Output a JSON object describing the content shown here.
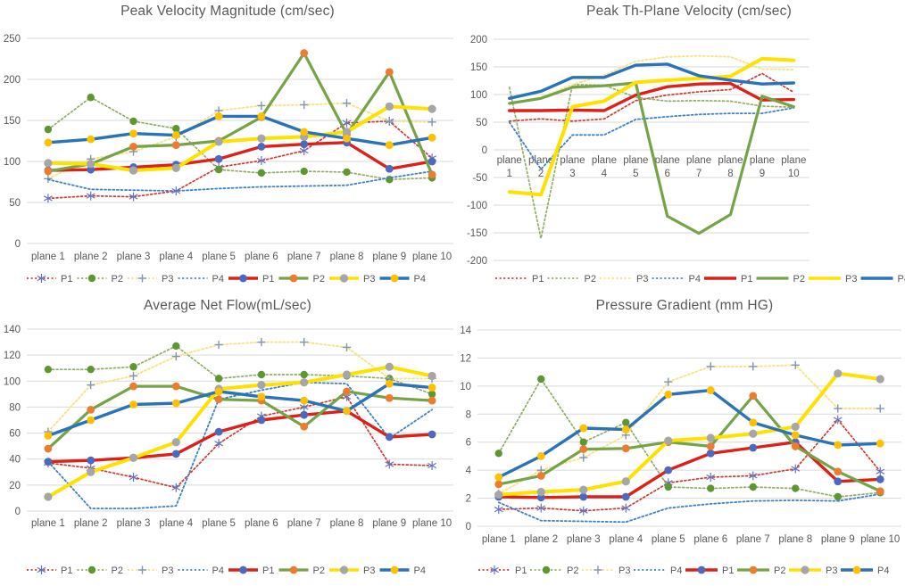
{
  "app": {
    "background": "#FFFFFF",
    "gridline_color": "#D9D9D9",
    "title_color": "#595959",
    "axis_text_color": "#595959"
  },
  "series_styles": [
    {
      "label": "P1",
      "variant": "dotted",
      "line_color": "#CE3A32",
      "line_width": 1.7,
      "dash": "2 2.6",
      "marker": "star",
      "marker_color": "#6674BE",
      "marker_r": 5
    },
    {
      "label": "P2",
      "variant": "dotted",
      "line_color": "#8FAE63",
      "line_width": 1.7,
      "dash": "2 2.6",
      "marker": "circle",
      "marker_color": "#5E9732",
      "marker_r": 4.2
    },
    {
      "label": "P3",
      "variant": "dotted",
      "line_color": "#F6E488",
      "line_width": 1.9,
      "dash": "2 2.6",
      "marker": "plus",
      "marker_color": "#8295B5",
      "marker_r": 5
    },
    {
      "label": "P4",
      "variant": "dotted",
      "line_color": "#3F81C3",
      "line_width": 1.8,
      "dash": "2 2.6",
      "marker": "none",
      "marker_color": "#3F81C3",
      "marker_r": 0
    },
    {
      "label": "P1",
      "variant": "solid",
      "line_color": "#DC2119",
      "line_width": 3.4,
      "dash": "",
      "marker": "circle",
      "marker_color": "#4D68BD",
      "marker_r": 4.4
    },
    {
      "label": "P2",
      "variant": "solid",
      "line_color": "#75A348",
      "line_width": 3.2,
      "dash": "",
      "marker": "circle",
      "marker_color": "#EC7C30",
      "marker_r": 4.4
    },
    {
      "label": "P3",
      "variant": "solid",
      "line_color": "#FFE100",
      "line_width": 4.0,
      "dash": "",
      "marker": "circle",
      "marker_color": "#A6A6A6",
      "marker_r": 4.6
    },
    {
      "label": "P4",
      "variant": "solid",
      "line_color": "#2A73B7",
      "line_width": 3.4,
      "dash": "",
      "marker": "circle",
      "marker_color": "#FFC000",
      "marker_r": 4.4
    }
  ],
  "chart_data": [
    {
      "type": "line",
      "id": "peak-velocity-magnitude",
      "title": "Peak Velocity Magnitude (cm/sec)",
      "categories": [
        "plane 1",
        "plane 2",
        "plane 3",
        "plane 4",
        "plane 5",
        "plane 6",
        "plane 7",
        "plane 8",
        "plane 9",
        "plane 10"
      ],
      "ylim": [
        0,
        250
      ],
      "ystep": 50,
      "grid": true,
      "show_markers": true,
      "legend_position": "bottom",
      "series": [
        {
          "name": "P1",
          "variant": "dotted",
          "values": [
            55,
            58,
            57,
            64,
            93,
            101,
            113,
            147,
            149,
            104
          ]
        },
        {
          "name": "P2",
          "variant": "dotted",
          "values": [
            139,
            178,
            149,
            140,
            90,
            86,
            88,
            87,
            78,
            80
          ]
        },
        {
          "name": "P3",
          "variant": "dotted",
          "values": [
            79,
            103,
            112,
            130,
            162,
            168,
            169,
            171,
            149,
            148
          ]
        },
        {
          "name": "P4",
          "variant": "dotted",
          "values": [
            78,
            66,
            65,
            64,
            67,
            69,
            70,
            71,
            80,
            88
          ]
        },
        {
          "name": "P1",
          "variant": "solid",
          "values": [
            89,
            90,
            93,
            96,
            103,
            118,
            121,
            123,
            91,
            100
          ]
        },
        {
          "name": "P2",
          "variant": "solid",
          "values": [
            88,
            97,
            118,
            120,
            125,
            154,
            232,
            133,
            209,
            84
          ]
        },
        {
          "name": "P3",
          "variant": "solid",
          "values": [
            98,
            97,
            89,
            92,
            124,
            128,
            130,
            136,
            167,
            164
          ]
        },
        {
          "name": "P4",
          "variant": "solid",
          "values": [
            123,
            127,
            134,
            132,
            155,
            155,
            136,
            128,
            120,
            129
          ]
        }
      ]
    },
    {
      "type": "line",
      "id": "peak-th-plane-velocity",
      "title": "Peak Th-Plane Velocity (cm/sec)",
      "categories": [
        "plane 1",
        "plane 2",
        "plane 3",
        "plane 4",
        "plane 5",
        "plane 6",
        "plane 7",
        "plane 8",
        "plane 9",
        "plane 10"
      ],
      "ylim": [
        -200,
        200
      ],
      "ystep": 50,
      "grid": true,
      "show_markers": false,
      "legend_position": "bottom",
      "series": [
        {
          "name": "P1",
          "variant": "dotted",
          "values": [
            52,
            56,
            52,
            56,
            89,
            99,
            105,
            109,
            138,
            104
          ]
        },
        {
          "name": "P2",
          "variant": "dotted",
          "values": [
            113,
            -160,
            118,
            117,
            95,
            88,
            89,
            88,
            79,
            77
          ]
        },
        {
          "name": "P3",
          "variant": "dotted",
          "values": [
            85,
            95,
            118,
            135,
            160,
            168,
            170,
            168,
            146,
            145
          ]
        },
        {
          "name": "P4",
          "variant": "dotted",
          "values": [
            50,
            -35,
            27,
            27,
            55,
            60,
            64,
            66,
            66,
            76
          ]
        },
        {
          "name": "P1",
          "variant": "solid",
          "values": [
            71,
            71,
            72,
            71,
            99,
            114,
            119,
            120,
            90,
            91
          ]
        },
        {
          "name": "P2",
          "variant": "solid",
          "values": [
            84,
            93,
            113,
            116,
            121,
            -120,
            -151,
            -117,
            97,
            78
          ]
        },
        {
          "name": "P3",
          "variant": "solid",
          "values": [
            -76,
            -81,
            78,
            88,
            122,
            126,
            129,
            133,
            165,
            162
          ]
        },
        {
          "name": "P4",
          "variant": "solid",
          "values": [
            93,
            106,
            131,
            131,
            153,
            155,
            134,
            126,
            119,
            121
          ]
        }
      ]
    },
    {
      "type": "line",
      "id": "average-net-flow",
      "title": "Average Net Flow(mL/sec)",
      "categories": [
        "plane 1",
        "plane 2",
        "plane 3",
        "plane 4",
        "plane 5",
        "plane 6",
        "plane 7",
        "plane 8",
        "plane 9",
        "plane 10"
      ],
      "ylim": [
        0,
        140
      ],
      "ystep": 20,
      "grid": true,
      "show_markers": true,
      "legend_position": "bottom",
      "series": [
        {
          "name": "P1",
          "variant": "dotted",
          "values": [
            37,
            33,
            26,
            18,
            52,
            73,
            80,
            88,
            36,
            35
          ]
        },
        {
          "name": "P2",
          "variant": "dotted",
          "values": [
            109,
            109,
            111,
            127,
            102,
            105,
            105,
            104,
            102,
            90
          ]
        },
        {
          "name": "P3",
          "variant": "dotted",
          "values": [
            61,
            97,
            104,
            119,
            128,
            130,
            130,
            126,
            102,
            102
          ]
        },
        {
          "name": "P4",
          "variant": "dotted",
          "values": [
            38,
            2,
            2,
            4,
            86,
            93,
            99,
            98,
            56,
            78
          ]
        },
        {
          "name": "P1",
          "variant": "solid",
          "values": [
            38,
            39,
            41,
            44,
            61,
            70,
            74,
            77,
            57,
            59
          ]
        },
        {
          "name": "P2",
          "variant": "solid",
          "values": [
            48,
            78,
            96,
            96,
            86,
            85,
            65,
            92,
            87,
            85
          ]
        },
        {
          "name": "P3",
          "variant": "solid",
          "values": [
            11,
            30,
            41,
            53,
            94,
            97,
            99,
            105,
            111,
            104
          ]
        },
        {
          "name": "P4",
          "variant": "solid",
          "values": [
            58,
            70,
            82,
            83,
            92,
            88,
            85,
            77,
            98,
            95
          ]
        }
      ]
    },
    {
      "type": "line",
      "id": "pressure-gradient",
      "title": "Pressure Gradient (mm HG)",
      "categories": [
        "plane 1",
        "plane 2",
        "plane 3",
        "plane 4",
        "plane 5",
        "plane 6",
        "plane 7",
        "plane 8",
        "plane 9",
        "plane 10"
      ],
      "ylim": [
        0,
        14
      ],
      "ystep": 2,
      "grid": true,
      "show_markers": true,
      "legend_position": "bottom",
      "series": [
        {
          "name": "P1",
          "variant": "dotted",
          "values": [
            1.2,
            1.3,
            1.1,
            1.3,
            3.1,
            3.5,
            3.6,
            4.1,
            7.6,
            3.9
          ]
        },
        {
          "name": "P2",
          "variant": "dotted",
          "values": [
            5.2,
            10.5,
            6.0,
            7.4,
            2.8,
            2.7,
            2.8,
            2.7,
            2.1,
            2.4
          ]
        },
        {
          "name": "P3",
          "variant": "dotted",
          "values": [
            2.3,
            4.0,
            4.9,
            6.5,
            10.3,
            11.4,
            11.4,
            11.5,
            8.4,
            8.4
          ]
        },
        {
          "name": "P4",
          "variant": "dotted",
          "values": [
            1.7,
            0.4,
            0.35,
            0.3,
            1.3,
            1.6,
            1.8,
            1.85,
            1.8,
            2.3
          ]
        },
        {
          "name": "P1",
          "variant": "solid",
          "values": [
            2.1,
            2.05,
            2.1,
            2.1,
            4.0,
            5.2,
            5.6,
            6.0,
            3.2,
            3.35
          ]
        },
        {
          "name": "P2",
          "variant": "solid",
          "values": [
            3.0,
            3.6,
            5.5,
            5.55,
            6.0,
            5.7,
            9.3,
            5.7,
            3.9,
            2.5
          ]
        },
        {
          "name": "P3",
          "variant": "solid",
          "values": [
            2.25,
            2.45,
            2.6,
            3.2,
            6.1,
            6.3,
            6.6,
            7.1,
            10.9,
            10.5
          ]
        },
        {
          "name": "P4",
          "variant": "solid",
          "values": [
            3.5,
            5.0,
            7.0,
            6.9,
            9.4,
            9.7,
            7.4,
            6.5,
            5.8,
            5.9
          ]
        }
      ]
    }
  ]
}
